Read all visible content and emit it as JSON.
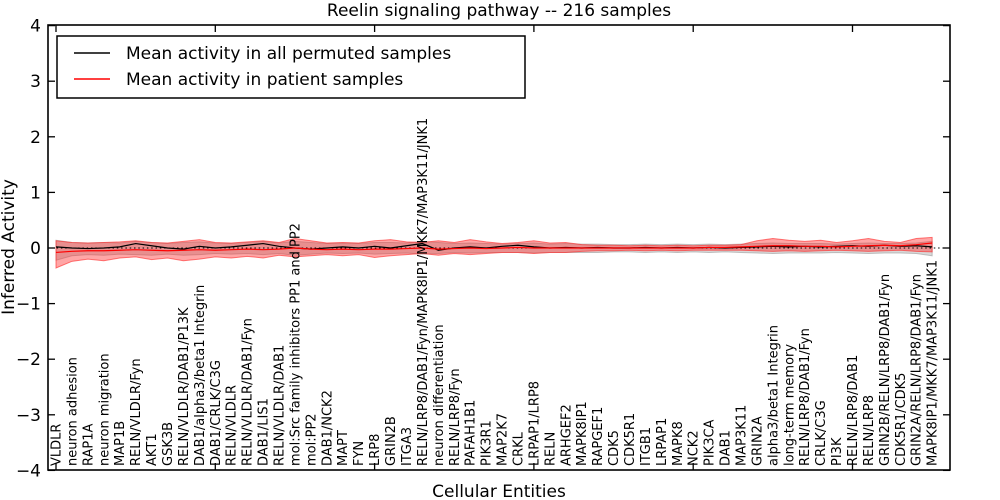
{
  "chart_data": {
    "type": "line",
    "title": "Reelin signaling pathway -- 216 samples",
    "xlabel": "Cellular Entities",
    "ylabel": "Inferred Activity",
    "ylim": [
      -4,
      4
    ],
    "yticks": [
      4,
      3,
      2,
      1,
      0,
      -1,
      -2,
      -3,
      -4
    ],
    "ytick_labels": [
      "4",
      "3",
      "2",
      "1",
      "0",
      "−1",
      "−2",
      "−3",
      "−4"
    ],
    "grid": false,
    "zero_line": "dotted",
    "legend_position": "upper left",
    "colors": {
      "permuted_line": "#000000",
      "patient_line": "#ff0000",
      "patient_band": "#ff2a2a",
      "permuted_band": "#999999"
    },
    "categories": [
      "VLDLR",
      "neuron adhesion",
      "RAP1A",
      "neuron migration",
      "MAP1B",
      "RELN/VLDLR/Fyn",
      "AKT1",
      "GSK3B",
      "RELN/VLDLR/DAB1/P13K",
      "DAB1/alpha3/beta1 Integrin",
      "DAB1/CRLK/C3G",
      "RELN/VLDLR",
      "RELN/VLDLR/DAB1/Fyn",
      "DAB1/LIS1",
      "RELN/VLDLR/DAB1",
      "mol:Src family inhibitors PP1 and PP2",
      "mol:PP2",
      "DAB1/NCK2",
      "MAPT",
      "FYN",
      "LRP8",
      "GRIN2B",
      "ITGA3",
      "RELN/LRP8/DAB1/Fyn/MAPK8IP1/MKK7/MAP3K11/JNK1",
      "neuron differentiation",
      "RELN/LRP8/Fyn",
      "PAFAH1B1",
      "PIK3R1",
      "MAP2K7",
      "CRKL",
      "LRPAP1/LRP8",
      "RELN",
      "ARHGEF2",
      "MAPK8IP1",
      "RAPGEF1",
      "CDK5",
      "CDK5R1",
      "ITGB1",
      "LRPAP1",
      "MAPK8",
      "NCK2",
      "PIK3CA",
      "DAB1",
      "MAP3K11",
      "GRIN2A",
      "alpha3/beta1 Integrin",
      "long-term memory",
      "RELN/LRP8/DAB1/Fyn",
      "CRLK/C3G",
      "PI3K",
      "RELN/LRP8/DAB1",
      "RELN/LRP8",
      "GRIN2B/RELN/LRP8/DAB1/Fyn",
      "CDK5R1/CDK5",
      "GRIN2A/RELN/LRP8/DAB1/Fyn",
      "MAPK8IP1/MKK7/MAP3K11/JNK1"
    ],
    "series": [
      {
        "name": "Mean activity in all permuted samples",
        "color": "#000000",
        "values": [
          0.02,
          0.0,
          -0.01,
          0.0,
          0.02,
          0.08,
          0.04,
          0.0,
          -0.02,
          0.03,
          0.0,
          0.02,
          0.05,
          0.08,
          0.03,
          0.0,
          -0.02,
          0.0,
          0.02,
          0.0,
          0.03,
          0.0,
          0.04,
          0.08,
          -0.04,
          0.0,
          0.02,
          0.0,
          0.03,
          0.05,
          0.02,
          0.0,
          0.01,
          0.0,
          0.01,
          0.0,
          0.0,
          0.01,
          0.0,
          0.01,
          0.0,
          0.01,
          0.0,
          0.01,
          0.02,
          0.03,
          0.02,
          0.03,
          0.02,
          0.03,
          0.04,
          0.03,
          0.05,
          0.03,
          0.04,
          0.02
        ]
      },
      {
        "name": "Mean activity in patient samples",
        "color": "#ff0000",
        "values": [
          -0.08,
          -0.06,
          -0.05,
          -0.05,
          -0.04,
          -0.03,
          -0.04,
          -0.05,
          -0.04,
          -0.03,
          -0.04,
          -0.03,
          -0.02,
          -0.03,
          -0.02,
          0.0,
          -0.02,
          -0.03,
          -0.02,
          -0.03,
          -0.02,
          -0.02,
          -0.01,
          0.0,
          -0.02,
          -0.01,
          0.0,
          -0.01,
          0.0,
          0.01,
          0.0,
          0.0,
          0.0,
          0.0,
          0.0,
          0.0,
          0.0,
          0.0,
          0.0,
          0.0,
          0.0,
          0.01,
          0.01,
          0.02,
          0.03,
          0.04,
          0.04,
          0.03,
          0.03,
          0.02,
          0.03,
          0.04,
          0.05,
          0.04,
          0.06,
          0.09
        ]
      }
    ],
    "bands": [
      {
        "name": "permuted-samples-band",
        "color": "#999999",
        "opacity": 0.38,
        "upper": [
          0.14,
          0.1,
          0.09,
          0.1,
          0.09,
          0.12,
          0.1,
          0.08,
          0.1,
          0.11,
          0.09,
          0.08,
          0.1,
          0.12,
          0.09,
          0.12,
          0.1,
          0.08,
          0.09,
          0.08,
          0.1,
          0.1,
          0.09,
          0.12,
          0.1,
          0.08,
          0.09,
          0.08,
          0.07,
          0.08,
          0.09,
          0.07,
          0.08,
          0.07,
          0.07,
          0.06,
          0.06,
          0.07,
          0.06,
          0.07,
          0.06,
          0.07,
          0.06,
          0.07,
          0.08,
          0.09,
          0.08,
          0.08,
          0.08,
          0.07,
          0.08,
          0.09,
          0.08,
          0.08,
          0.09,
          0.12
        ],
        "lower": [
          -0.22,
          -0.14,
          -0.12,
          -0.13,
          -0.11,
          -0.12,
          -0.13,
          -0.11,
          -0.13,
          -0.12,
          -0.1,
          -0.11,
          -0.1,
          -0.12,
          -0.1,
          -0.13,
          -0.11,
          -0.09,
          -0.1,
          -0.09,
          -0.11,
          -0.1,
          -0.09,
          -0.11,
          -0.1,
          -0.08,
          -0.09,
          -0.08,
          -0.08,
          -0.08,
          -0.09,
          -0.08,
          -0.08,
          -0.08,
          -0.08,
          -0.07,
          -0.07,
          -0.08,
          -0.07,
          -0.08,
          -0.07,
          -0.08,
          -0.07,
          -0.08,
          -0.09,
          -0.1,
          -0.09,
          -0.09,
          -0.09,
          -0.08,
          -0.09,
          -0.1,
          -0.09,
          -0.09,
          -0.1,
          -0.14
        ]
      },
      {
        "name": "patient-samples-band",
        "color": "#ff2a2a",
        "opacity": 0.42,
        "upper": [
          0.13,
          0.1,
          0.09,
          0.1,
          0.11,
          0.13,
          0.1,
          0.09,
          0.12,
          0.15,
          0.1,
          0.09,
          0.11,
          0.13,
          0.1,
          0.17,
          0.13,
          0.09,
          0.1,
          0.09,
          0.13,
          0.15,
          0.11,
          0.1,
          0.13,
          0.1,
          0.15,
          0.11,
          0.08,
          0.1,
          0.13,
          0.09,
          0.1,
          0.06,
          0.05,
          0.05,
          0.04,
          0.05,
          0.04,
          0.05,
          0.04,
          0.05,
          0.05,
          0.06,
          0.13,
          0.17,
          0.14,
          0.12,
          0.14,
          0.1,
          0.13,
          0.17,
          0.12,
          0.1,
          0.17,
          0.19
        ],
        "lower": [
          -0.36,
          -0.24,
          -0.2,
          -0.23,
          -0.18,
          -0.16,
          -0.21,
          -0.18,
          -0.23,
          -0.2,
          -0.16,
          -0.18,
          -0.15,
          -0.18,
          -0.13,
          -0.16,
          -0.14,
          -0.12,
          -0.14,
          -0.12,
          -0.17,
          -0.14,
          -0.12,
          -0.1,
          -0.13,
          -0.1,
          -0.12,
          -0.1,
          -0.08,
          -0.08,
          -0.1,
          -0.08,
          -0.08,
          -0.06,
          -0.05,
          -0.05,
          -0.04,
          -0.05,
          -0.04,
          -0.05,
          -0.04,
          -0.04,
          -0.04,
          -0.04,
          -0.05,
          -0.06,
          -0.05,
          -0.06,
          -0.05,
          -0.04,
          -0.05,
          -0.06,
          -0.05,
          -0.04,
          -0.06,
          -0.07
        ]
      }
    ]
  }
}
